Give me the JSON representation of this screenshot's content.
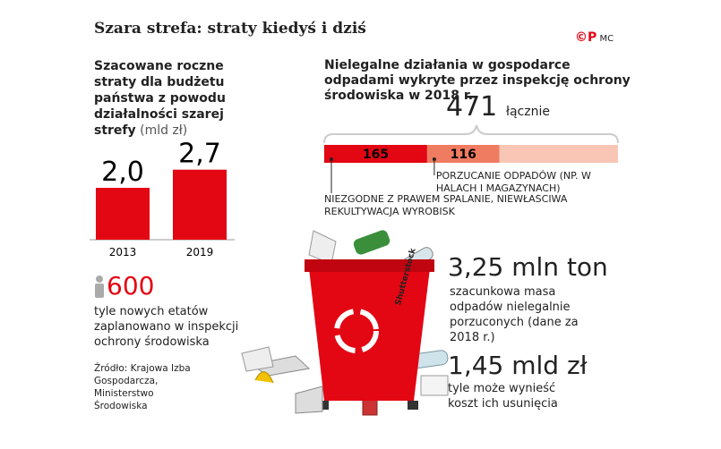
{
  "header": {
    "title": "Szara strefa: straty kiedyś i dziś",
    "logo": "MC"
  },
  "chart_data": [
    {
      "type": "bar",
      "title": "Szacowane roczne straty dla budżetu państwa z powodu działalności szarej strefy",
      "unit": "(mld zł)",
      "categories": [
        "2013",
        "2019"
      ],
      "values": [
        2.0,
        2.7
      ],
      "value_labels": [
        "2,0",
        "2,7"
      ],
      "color": "#e30613"
    },
    {
      "type": "stacked-hbar",
      "title": "Nielegalne działania w gospodarce odpadami wykryte przez inspekcję ochrony środowiska w 2018 r.",
      "total": 471,
      "total_label": "łącznie",
      "xlim": [
        0,
        471
      ],
      "series": [
        {
          "name": "NIEZGODNE Z PRAWEM SPALANIE, NIEWŁAŚCIWA REKULTYWACJA WYROBISK",
          "color": "#e30613",
          "values": [
            165
          ]
        },
        {
          "name": "PORZUCANIE ODPADÓW (NP. W HALACH I MAGAZYNACH)",
          "color": "#ef7b61",
          "values": [
            116
          ]
        },
        {
          "name": null,
          "color": "#f9c6b5",
          "values": [
            190
          ]
        }
      ]
    }
  ],
  "stats": [
    {
      "value": "600",
      "text": "tyle nowych etatów zaplanowano w inspekcji ochrony środowiska"
    },
    {
      "value": "3,25 mln ton",
      "text": "szacunkowa masa odpadów nielegalnie porzuconych (dane za 2018 r.)"
    },
    {
      "value": "1,45 mld zł",
      "text": "tyle może wynieść koszt ich usunięcia"
    }
  ],
  "source": "Źródło: Krajowa Izba Gospodarcza, Ministerstwo Środowiska",
  "image_credit": "Shutterstock"
}
